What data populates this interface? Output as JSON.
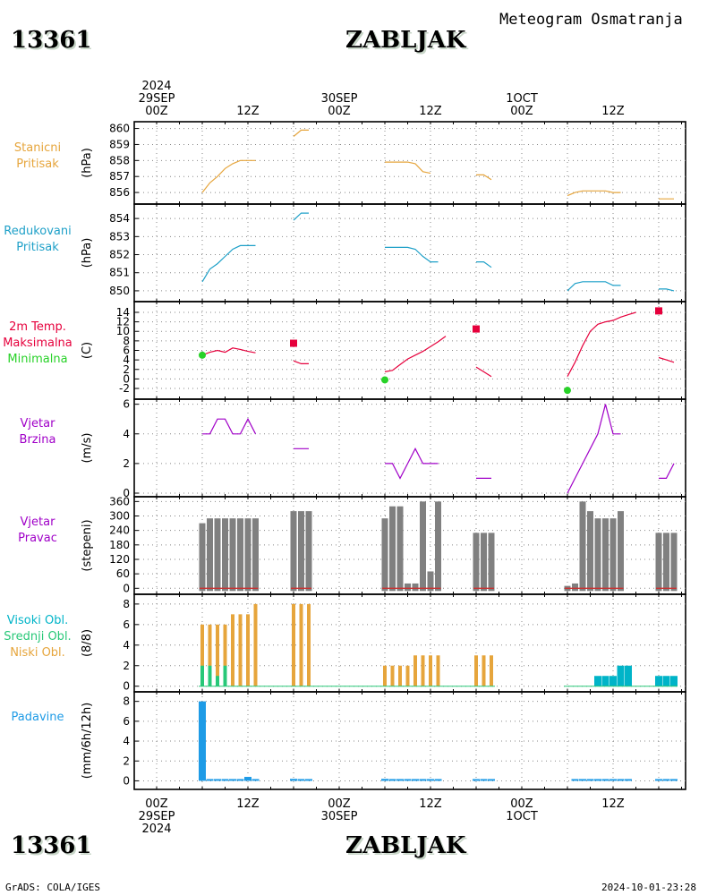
{
  "header": {
    "station_id": "13361",
    "station_name": "ZABLJAK",
    "title": "Meteogram Osmatranja"
  },
  "footer": {
    "credit": "GrADS: COLA/IGES",
    "timestamp": "2024-10-01-23:28"
  },
  "time_axis": {
    "top": [
      "2024\n29SEP\n00Z",
      "12Z",
      "30SEP\n00Z",
      "12Z",
      "1OCT\n00Z",
      "12Z"
    ],
    "bottom": [
      "00Z\n29SEP\n2024",
      "12Z",
      "00Z\n30SEP",
      "12Z",
      "00Z\n1OCT",
      "12Z"
    ]
  },
  "colors": {
    "pressure": "#e6a53c",
    "reduced_pressure": "#1ea0c8",
    "tmax": "#e6003c",
    "tmin": "#28d228",
    "wind": "#a000c8",
    "wind_dir_bar": "#808080",
    "wind_dir_line": "#c83232",
    "cloud_high": "#00b4c8",
    "cloud_mid": "#28c878",
    "cloud_low": "#e6a53c",
    "precip": "#1e9be6",
    "grid": "#888888"
  },
  "chart_data": [
    {
      "type": "line",
      "label": "Stanicni\nPritisak",
      "unit": "(hPa)",
      "ylim": [
        855.5,
        860.2
      ],
      "ticks": [
        856,
        857,
        858,
        859,
        860
      ],
      "series": [
        {
          "values": [
            [
              6,
              856.0
            ],
            [
              7,
              856.6
            ],
            [
              8,
              857.0
            ],
            [
              9,
              857.5
            ],
            [
              10,
              857.8
            ],
            [
              11,
              858.0
            ],
            [
              12,
              858.0
            ],
            [
              13,
              858.0
            ]
          ]
        },
        {
          "values": [
            [
              18,
              859.5
            ],
            [
              19,
              859.9
            ],
            [
              20,
              859.9
            ]
          ]
        },
        {
          "values": [
            [
              30,
              857.9
            ],
            [
              31,
              857.9
            ],
            [
              32,
              857.9
            ],
            [
              33,
              857.9
            ],
            [
              34,
              857.8
            ],
            [
              35,
              857.3
            ],
            [
              36,
              857.2
            ]
          ]
        },
        {
          "values": [
            [
              42,
              857.1
            ],
            [
              43,
              857.1
            ],
            [
              44,
              856.8
            ]
          ]
        },
        {
          "values": [
            [
              54,
              855.8
            ],
            [
              55,
              856.0
            ],
            [
              56,
              856.1
            ],
            [
              57,
              856.1
            ],
            [
              58,
              856.1
            ],
            [
              59,
              856.1
            ],
            [
              60,
              856.0
            ],
            [
              61,
              856.0
            ]
          ]
        },
        {
          "values": [
            [
              66,
              855.6
            ],
            [
              67,
              855.6
            ],
            [
              68,
              855.6
            ]
          ]
        }
      ]
    },
    {
      "type": "line",
      "label": "Redukovani\nPritisak",
      "unit": "(hPa)",
      "ylim": [
        849.6,
        854.6
      ],
      "ticks": [
        850,
        851,
        852,
        853,
        854
      ],
      "series": [
        {
          "values": [
            [
              6,
              850.5
            ],
            [
              7,
              851.2
            ],
            [
              8,
              851.5
            ],
            [
              9,
              851.9
            ],
            [
              10,
              852.3
            ],
            [
              11,
              852.5
            ],
            [
              12,
              852.5
            ],
            [
              13,
              852.5
            ]
          ]
        },
        {
          "values": [
            [
              18,
              853.9
            ],
            [
              19,
              854.3
            ],
            [
              20,
              854.3
            ]
          ]
        },
        {
          "values": [
            [
              30,
              852.4
            ],
            [
              31,
              852.4
            ],
            [
              32,
              852.4
            ],
            [
              33,
              852.4
            ],
            [
              34,
              852.3
            ],
            [
              35,
              851.9
            ],
            [
              36,
              851.6
            ],
            [
              37,
              851.6
            ]
          ]
        },
        {
          "values": [
            [
              42,
              851.6
            ],
            [
              43,
              851.6
            ],
            [
              44,
              851.3
            ]
          ]
        },
        {
          "values": [
            [
              54,
              850.0
            ],
            [
              55,
              850.4
            ],
            [
              56,
              850.5
            ],
            [
              57,
              850.5
            ],
            [
              58,
              850.5
            ],
            [
              59,
              850.5
            ],
            [
              60,
              850.3
            ],
            [
              61,
              850.3
            ]
          ]
        },
        {
          "values": [
            [
              66,
              850.1
            ],
            [
              67,
              850.1
            ],
            [
              68,
              850.0
            ]
          ]
        }
      ]
    },
    {
      "type": "line",
      "label": "2m Temp.\nMaksimalna\nMinimalna",
      "unit": "(C)",
      "ylim": [
        -3.5,
        15.5
      ],
      "ticks": [
        -2,
        0,
        2,
        4,
        6,
        8,
        10,
        12,
        14
      ],
      "series": [
        {
          "values": [
            [
              6,
              5.0
            ],
            [
              7,
              5.6
            ],
            [
              8,
              6.0
            ],
            [
              9,
              5.6
            ],
            [
              10,
              6.5
            ],
            [
              11,
              6.2
            ],
            [
              12,
              5.8
            ],
            [
              13,
              5.5
            ]
          ]
        },
        {
          "values": [
            [
              18,
              3.8
            ],
            [
              19,
              3.2
            ],
            [
              20,
              3.2
            ]
          ]
        },
        {
          "values": [
            [
              30,
              1.5
            ],
            [
              31,
              1.8
            ],
            [
              32,
              3.0
            ],
            [
              33,
              4.2
            ],
            [
              34,
              5.0
            ],
            [
              35,
              5.8
            ],
            [
              36,
              6.8
            ],
            [
              37,
              7.8
            ],
            [
              38,
              9.0
            ]
          ]
        },
        {
          "values": [
            [
              42,
              2.5
            ],
            [
              43,
              1.5
            ],
            [
              44,
              0.5
            ]
          ]
        },
        {
          "values": [
            [
              54,
              0.5
            ],
            [
              55,
              3.5
            ],
            [
              56,
              7.0
            ],
            [
              57,
              10.0
            ],
            [
              58,
              11.5
            ],
            [
              59,
              12.0
            ],
            [
              60,
              12.3
            ],
            [
              61,
              13.0
            ],
            [
              62,
              13.5
            ],
            [
              63,
              14.0
            ]
          ]
        },
        {
          "values": [
            [
              66,
              4.5
            ],
            [
              67,
              4.0
            ],
            [
              68,
              3.5
            ]
          ]
        }
      ],
      "max_markers": [
        [
          18,
          7.5
        ],
        [
          42,
          10.5
        ],
        [
          66,
          14.3
        ]
      ],
      "min_markers": [
        [
          6,
          5.0
        ],
        [
          30,
          -0.2
        ],
        [
          54,
          -2.4
        ]
      ]
    },
    {
      "type": "line",
      "label": "Vjetar\nBrzina",
      "unit": "(m/s)",
      "ylim": [
        0,
        6.1
      ],
      "ticks": [
        0,
        2,
        4,
        6
      ],
      "series": [
        {
          "values": [
            [
              6,
              4
            ],
            [
              7,
              4
            ],
            [
              8,
              5
            ],
            [
              9,
              5
            ],
            [
              10,
              4
            ],
            [
              11,
              4
            ],
            [
              12,
              5
            ],
            [
              13,
              4
            ]
          ]
        },
        {
          "values": [
            [
              18,
              3
            ],
            [
              19,
              3
            ],
            [
              20,
              3
            ]
          ]
        },
        {
          "values": [
            [
              30,
              2
            ],
            [
              31,
              2
            ],
            [
              32,
              1
            ],
            [
              33,
              2
            ],
            [
              34,
              3
            ],
            [
              35,
              2
            ],
            [
              36,
              2
            ],
            [
              37,
              2
            ]
          ]
        },
        {
          "values": [
            [
              42,
              1
            ],
            [
              43,
              1
            ],
            [
              44,
              1
            ]
          ]
        },
        {
          "values": [
            [
              54,
              0
            ],
            [
              55,
              1
            ],
            [
              56,
              2
            ],
            [
              57,
              3
            ],
            [
              58,
              4
            ],
            [
              59,
              6
            ],
            [
              60,
              4
            ],
            [
              61,
              4
            ]
          ]
        },
        {
          "values": [
            [
              66,
              1
            ],
            [
              67,
              1
            ],
            [
              68,
              2
            ]
          ]
        }
      ]
    },
    {
      "type": "bar",
      "label": "Vjetar\nPravac",
      "unit": "(stepeni)",
      "ylim": [
        -10,
        365
      ],
      "ticks": [
        0,
        60,
        120,
        180,
        240,
        300,
        360
      ],
      "bars": [
        [
          6,
          270
        ],
        [
          7,
          290
        ],
        [
          8,
          290
        ],
        [
          9,
          290
        ],
        [
          10,
          290
        ],
        [
          11,
          290
        ],
        [
          12,
          290
        ],
        [
          13,
          290
        ],
        [
          18,
          320
        ],
        [
          19,
          320
        ],
        [
          20,
          320
        ],
        [
          30,
          290
        ],
        [
          31,
          340
        ],
        [
          32,
          340
        ],
        [
          33,
          20
        ],
        [
          34,
          20
        ],
        [
          35,
          360
        ],
        [
          36,
          70
        ],
        [
          37,
          360
        ],
        [
          42,
          230
        ],
        [
          43,
          230
        ],
        [
          44,
          230
        ],
        [
          54,
          10
        ],
        [
          55,
          20
        ],
        [
          56,
          360
        ],
        [
          57,
          320
        ],
        [
          58,
          290
        ],
        [
          59,
          290
        ],
        [
          60,
          290
        ],
        [
          61,
          320
        ],
        [
          66,
          230
        ],
        [
          67,
          230
        ],
        [
          68,
          230
        ]
      ]
    },
    {
      "type": "bar",
      "label": "Visoki Obl.\nSrednji Obl.\nNiski Obl.",
      "unit": "(8/8)",
      "ylim": [
        -0.2,
        8.6
      ],
      "ticks": [
        0,
        2,
        4,
        6,
        8
      ],
      "low": [
        [
          6,
          6
        ],
        [
          7,
          6
        ],
        [
          8,
          6
        ],
        [
          9,
          6
        ],
        [
          10,
          7
        ],
        [
          11,
          7
        ],
        [
          12,
          7
        ],
        [
          13,
          8
        ],
        [
          18,
          8
        ],
        [
          19,
          8
        ],
        [
          20,
          8
        ],
        [
          30,
          2
        ],
        [
          31,
          2
        ],
        [
          32,
          2
        ],
        [
          33,
          2
        ],
        [
          34,
          3
        ],
        [
          35,
          3
        ],
        [
          36,
          3
        ],
        [
          37,
          3
        ],
        [
          42,
          3
        ],
        [
          43,
          3
        ],
        [
          44,
          3
        ]
      ],
      "mid": [
        [
          6,
          2
        ],
        [
          7,
          2
        ],
        [
          8,
          1
        ],
        [
          9,
          2
        ]
      ],
      "high": [
        [
          58,
          1
        ],
        [
          59,
          1
        ],
        [
          60,
          1
        ],
        [
          61,
          2
        ],
        [
          62,
          2
        ],
        [
          66,
          1
        ],
        [
          67,
          1
        ],
        [
          68,
          1
        ]
      ]
    },
    {
      "type": "bar",
      "label": "Padavine",
      "unit": "(mm/6h/12h)",
      "ylim": [
        -0.5,
        8.6
      ],
      "ticks": [
        0,
        2,
        4,
        6,
        8
      ],
      "bars": [
        [
          6,
          8.0
        ],
        [
          7,
          0.1
        ],
        [
          8,
          0.1
        ],
        [
          9,
          0.1
        ],
        [
          10,
          0.1
        ],
        [
          11,
          0.1
        ],
        [
          12,
          0.4
        ],
        [
          13,
          0.1
        ],
        [
          18,
          0.2
        ],
        [
          19,
          0.1
        ],
        [
          20,
          0.1
        ],
        [
          30,
          0.2
        ],
        [
          31,
          0.1
        ],
        [
          32,
          0.1
        ],
        [
          33,
          0.1
        ],
        [
          34,
          0.1
        ],
        [
          35,
          0.1
        ],
        [
          36,
          0.1
        ],
        [
          37,
          0.1
        ],
        [
          42,
          0.1
        ],
        [
          43,
          0.1
        ],
        [
          44,
          0.1
        ],
        [
          55,
          0.05
        ],
        [
          56,
          0.05
        ],
        [
          57,
          0.1
        ],
        [
          58,
          0.1
        ],
        [
          59,
          0.1
        ],
        [
          60,
          0.1
        ],
        [
          61,
          0.1
        ],
        [
          62,
          0.1
        ],
        [
          66,
          0.1
        ],
        [
          67,
          0.1
        ],
        [
          68,
          0.1
        ]
      ]
    }
  ]
}
